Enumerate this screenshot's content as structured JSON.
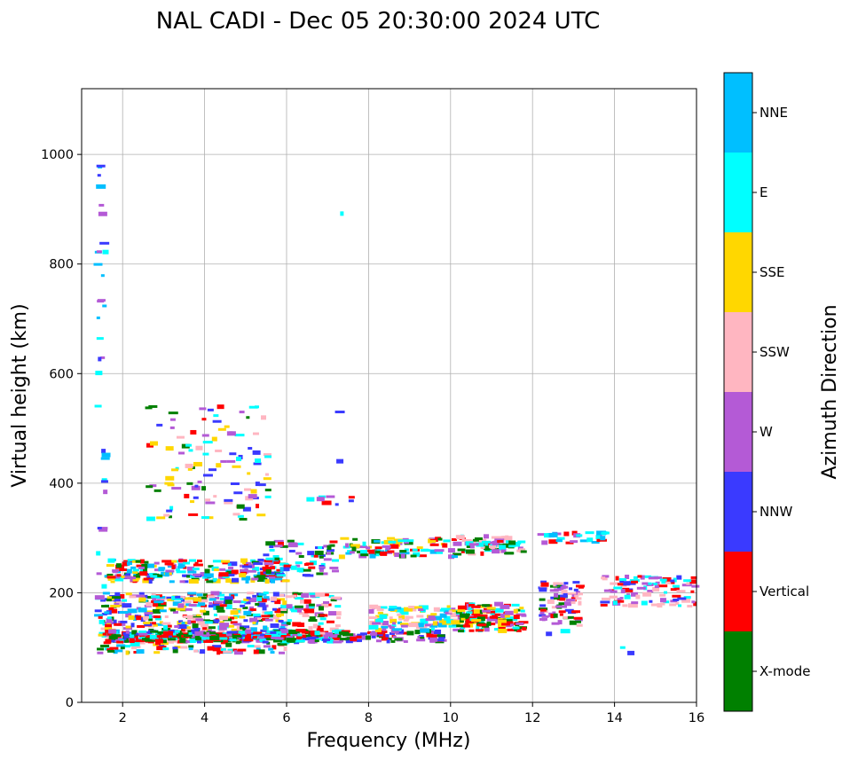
{
  "chart_data": {
    "type": "scatter",
    "title": "NAL CADI - Dec 05 20:30:00 2024 UTC",
    "xlabel": "Frequency (MHz)",
    "ylabel": "Virtual height (km)",
    "xlim": [
      1,
      16
    ],
    "ylim": [
      0,
      1120
    ],
    "xticks": [
      2,
      4,
      6,
      8,
      10,
      12,
      14,
      16
    ],
    "yticks": [
      0,
      200,
      400,
      600,
      800,
      1000
    ],
    "grid": true,
    "colorbar": {
      "label": "Azimuth Direction",
      "categories": [
        {
          "name": "X-mode",
          "color": "#008000"
        },
        {
          "name": "Vertical",
          "color": "#ff0000"
        },
        {
          "name": "NNW",
          "color": "#3a3aff"
        },
        {
          "name": "W",
          "color": "#b45ad6"
        },
        {
          "name": "SSW",
          "color": "#ffb6c1"
        },
        {
          "name": "SSE",
          "color": "#ffd700"
        },
        {
          "name": "E",
          "color": "#00ffff"
        },
        {
          "name": "NNE",
          "color": "#00bfff"
        }
      ]
    },
    "clusters": [
      {
        "f": [
          1.4,
          1.6
        ],
        "h": [
          180,
          1000
        ],
        "n": 34,
        "colors": [
          "NNW",
          "W",
          "NNE",
          "E"
        ]
      },
      {
        "f": [
          1.4,
          6.0
        ],
        "h": [
          90,
          200
        ],
        "n": 520,
        "colors": [
          "X-mode",
          "Vertical",
          "NNW",
          "W",
          "SSW",
          "SSE",
          "E",
          "NNE"
        ]
      },
      {
        "f": [
          1.6,
          7.3
        ],
        "h": [
          110,
          130
        ],
        "n": 300,
        "colors": [
          "X-mode",
          "Vertical",
          "NNW",
          "W",
          "E"
        ]
      },
      {
        "f": [
          6.0,
          7.3
        ],
        "h": [
          125,
          200
        ],
        "n": 70,
        "colors": [
          "W",
          "E",
          "X-mode",
          "Vertical",
          "SSW"
        ]
      },
      {
        "f": [
          7.3,
          9.8
        ],
        "h": [
          110,
          130
        ],
        "n": 80,
        "colors": [
          "X-mode",
          "Vertical",
          "NNW",
          "W"
        ]
      },
      {
        "f": [
          8.0,
          10.2
        ],
        "h": [
          130,
          175
        ],
        "n": 110,
        "colors": [
          "SSE",
          "E",
          "SSW",
          "W",
          "NNE"
        ]
      },
      {
        "f": [
          10.2,
          11.8
        ],
        "h": [
          130,
          180
        ],
        "n": 140,
        "colors": [
          "Vertical",
          "Vertical",
          "X-mode",
          "E",
          "SSE",
          "W"
        ]
      },
      {
        "f": [
          12.2,
          13.2
        ],
        "h": [
          140,
          220
        ],
        "n": 80,
        "colors": [
          "Vertical",
          "X-mode",
          "NNW",
          "W",
          "SSW"
        ]
      },
      {
        "f": [
          13.7,
          16.0
        ],
        "h": [
          175,
          230
        ],
        "n": 100,
        "colors": [
          "NNW",
          "W",
          "SSW",
          "Vertical",
          "E"
        ]
      },
      {
        "f": [
          1.6,
          6.0
        ],
        "h": [
          220,
          260
        ],
        "n": 220,
        "colors": [
          "X-mode",
          "Vertical",
          "NNW",
          "W",
          "SSE",
          "E",
          "NNE"
        ]
      },
      {
        "f": [
          5.5,
          7.3
        ],
        "h": [
          230,
          295
        ],
        "n": 70,
        "colors": [
          "NNW",
          "E",
          "Vertical",
          "W",
          "X-mode"
        ]
      },
      {
        "f": [
          7.3,
          10.2
        ],
        "h": [
          265,
          300
        ],
        "n": 90,
        "colors": [
          "SSE",
          "E",
          "W",
          "X-mode",
          "Vertical",
          "NNE"
        ]
      },
      {
        "f": [
          10.2,
          11.8
        ],
        "h": [
          270,
          305
        ],
        "n": 70,
        "colors": [
          "Vertical",
          "W",
          "E",
          "X-mode",
          "SSW"
        ]
      },
      {
        "f": [
          12.2,
          14.0
        ],
        "h": [
          290,
          310
        ],
        "n": 30,
        "colors": [
          "NNE",
          "E",
          "W",
          "Vertical"
        ]
      },
      {
        "f": [
          2.6,
          5.6
        ],
        "h": [
          330,
          540
        ],
        "n": 110,
        "colors": [
          "SSW",
          "W",
          "Vertical",
          "NNW",
          "E",
          "X-mode",
          "SSE"
        ]
      },
      {
        "f": [
          6.4,
          7.6
        ],
        "h": [
          350,
          380
        ],
        "n": 8,
        "colors": [
          "W",
          "Vertical",
          "NNW",
          "E"
        ]
      }
    ],
    "points": [
      {
        "f": 7.35,
        "h": 892,
        "c": "E"
      },
      {
        "f": 7.3,
        "h": 530,
        "c": "NNW"
      },
      {
        "f": 7.3,
        "h": 440,
        "c": "NNW"
      },
      {
        "f": 14.2,
        "h": 100,
        "c": "E"
      },
      {
        "f": 14.4,
        "h": 90,
        "c": "NNW"
      },
      {
        "f": 15.9,
        "h": 202,
        "c": "Vertical"
      },
      {
        "f": 12.4,
        "h": 125,
        "c": "NNW"
      },
      {
        "f": 12.8,
        "h": 130,
        "c": "E"
      }
    ]
  }
}
